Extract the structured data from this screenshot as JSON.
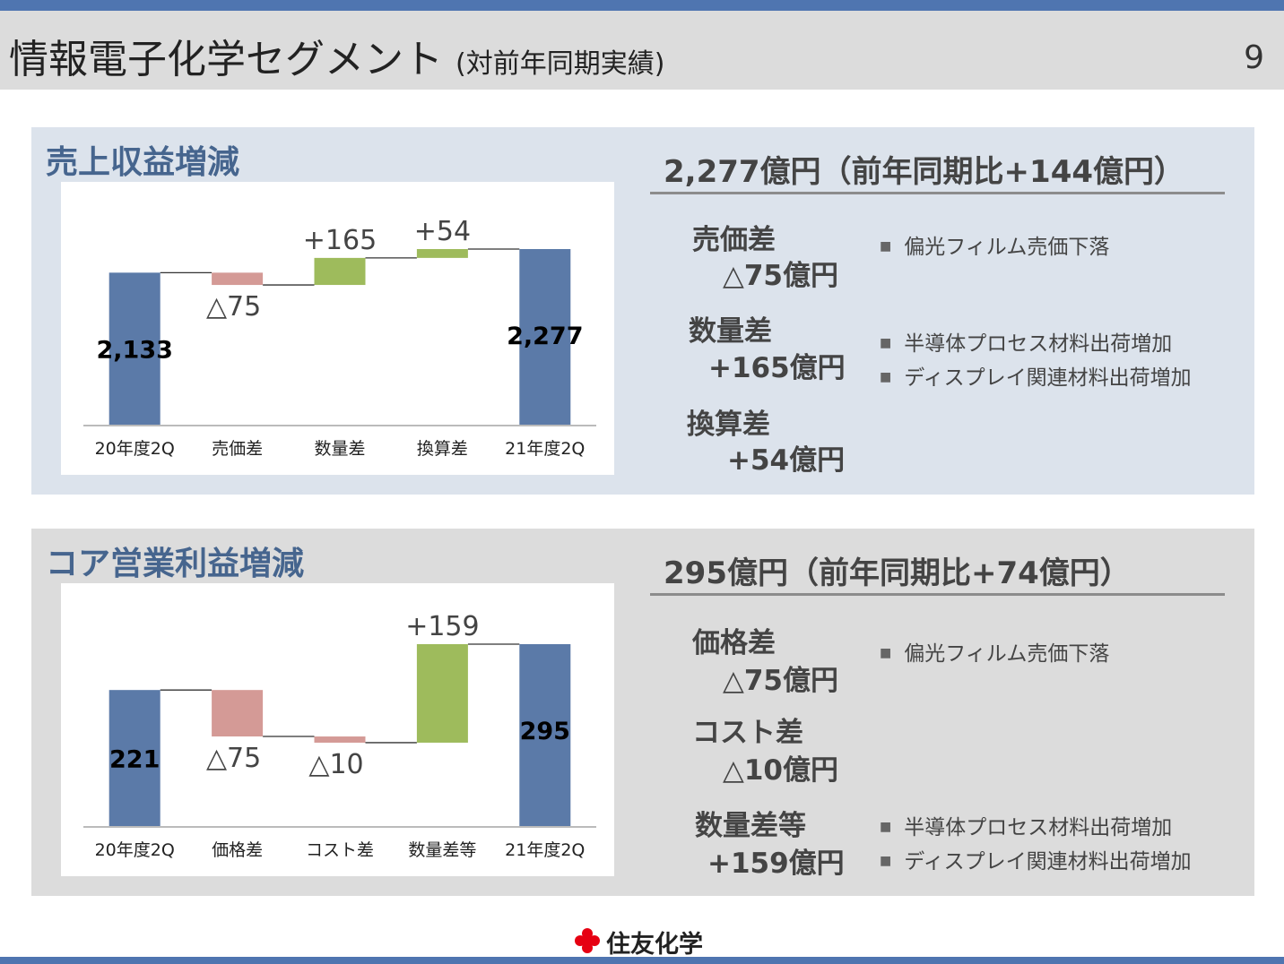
{
  "header": {
    "title": "情報電子化学セグメント",
    "subtitle": "(対前年同期実績)",
    "page_number": "9"
  },
  "colors": {
    "base_bar": "#5b7aa8",
    "increase_bar": "#9ebb5c",
    "decrease_bar": "#d49a96",
    "accent_title": "#46658e"
  },
  "revenue": {
    "title": "売上収益増減",
    "summary": "2,277億円（前年同期比+144億円）",
    "factors": [
      {
        "label": "売価差",
        "value": "△75億円",
        "bullets": [
          "偏光フィルム売価下落"
        ]
      },
      {
        "label": "数量差",
        "value": "+165億円",
        "bullets": [
          "半導体プロセス材料出荷増加",
          "ディスプレイ関連材料出荷増加"
        ]
      },
      {
        "label": "換算差",
        "value": "+54億円",
        "bullets": []
      }
    ]
  },
  "profit": {
    "title": "コア営業利益増減",
    "summary": "295億円（前年同期比+74億円）",
    "factors": [
      {
        "label": "価格差",
        "value": "△75億円",
        "bullets": [
          "偏光フィルム売価下落"
        ]
      },
      {
        "label": "コスト差",
        "value": "△10億円",
        "bullets": []
      },
      {
        "label": "数量差等",
        "value": "+159億円",
        "bullets": [
          "半導体プロセス材料出荷増加",
          "ディスプレイ関連材料出荷増加"
        ]
      }
    ]
  },
  "chart_data": [
    {
      "type": "bar",
      "subtype": "waterfall",
      "categories": [
        "20年度2Q",
        "売価差",
        "数量差",
        "換算差",
        "21年度2Q"
      ],
      "values": [
        2133,
        -75,
        165,
        54,
        2277
      ],
      "kinds": [
        "total",
        "delta",
        "delta",
        "delta",
        "total"
      ],
      "labels": [
        "2,133",
        "△75",
        "+165",
        "+54",
        "2,277"
      ]
    },
    {
      "type": "bar",
      "subtype": "waterfall",
      "categories": [
        "20年度2Q",
        "価格差",
        "コスト差",
        "数量差等",
        "21年度2Q"
      ],
      "values": [
        221,
        -75,
        -10,
        159,
        295
      ],
      "kinds": [
        "total",
        "delta",
        "delta",
        "delta",
        "total"
      ],
      "labels": [
        "221",
        "△75",
        "△10",
        "+159",
        "295"
      ]
    }
  ],
  "footer": {
    "company": "住友化学"
  }
}
